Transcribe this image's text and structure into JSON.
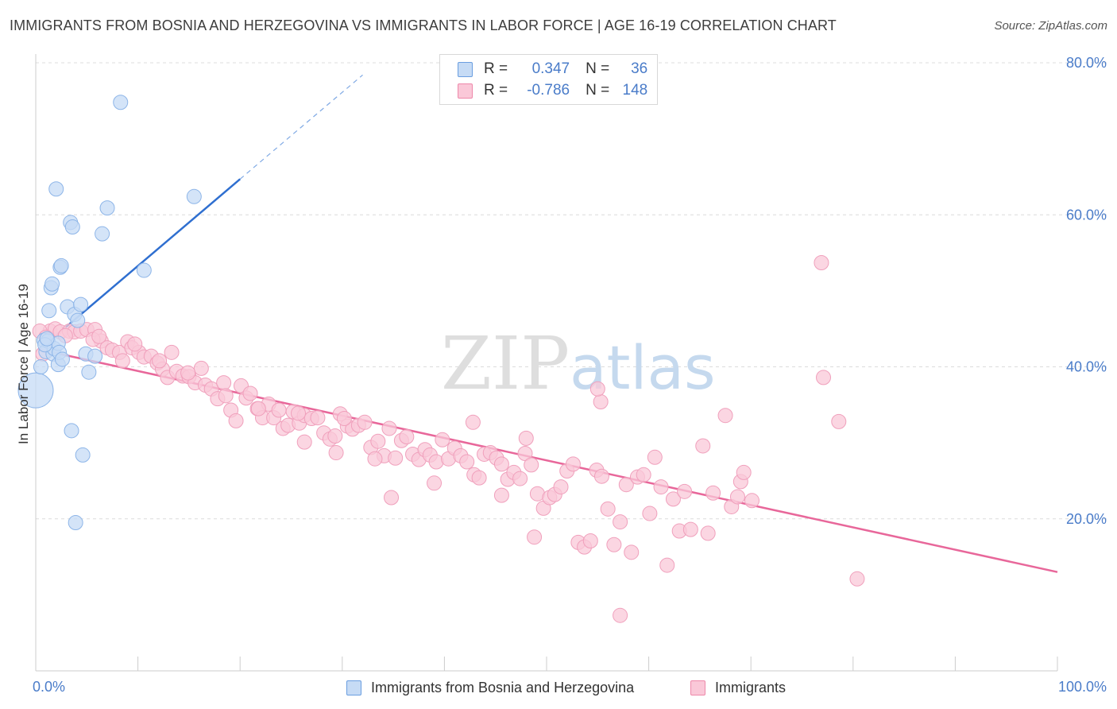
{
  "title": "IMMIGRANTS FROM BOSNIA AND HERZEGOVINA VS IMMIGRANTS IN LABOR FORCE | AGE 16-19 CORRELATION CHART",
  "source": "Source: ZipAtlas.com",
  "watermark": {
    "zip": "ZIP",
    "atlas": "atlas"
  },
  "legend": {
    "r_label": "R =",
    "n_label": "N =",
    "rows": [
      {
        "r": "0.347",
        "n": "36",
        "color": "#6a9ee0"
      },
      {
        "r": "-0.786",
        "n": "148",
        "color": "#ee88aa"
      }
    ]
  },
  "bottom_legend": [
    "Immigrants from Bosnia and Herzegovina",
    "Immigrants"
  ],
  "chart_data": {
    "type": "scatter",
    "title": "IMMIGRANTS FROM BOSNIA AND HERZEGOVINA VS IMMIGRANTS IN LABOR FORCE | AGE 16-19 CORRELATION CHART",
    "xlabel": "",
    "ylabel": "In Labor Force | Age 16-19",
    "xlim": [
      0,
      100
    ],
    "ylim": [
      0,
      80
    ],
    "x_tick_labels": [
      "0.0%",
      "100.0%"
    ],
    "y_tick_labels": [
      "20.0%",
      "40.0%",
      "60.0%",
      "80.0%"
    ],
    "y_ticks": [
      20,
      40,
      60,
      80
    ],
    "grid": true,
    "legend_placement": "top-center",
    "series": [
      {
        "name": "Immigrants from Bosnia and Herzegovina",
        "color": "#6a9ee0",
        "trend": {
          "x": [
            0.3,
            20
          ],
          "y": [
            42.2,
            64.7
          ],
          "dashed_to": [
            32,
            78.4
          ]
        },
        "points": [
          [
            0,
            36.9
          ],
          [
            0.5,
            40
          ],
          [
            0.8,
            43.5
          ],
          [
            1,
            42
          ],
          [
            1.2,
            43.4
          ],
          [
            1.3,
            47.4
          ],
          [
            1.5,
            50.4
          ],
          [
            1.6,
            50.9
          ],
          [
            1.7,
            41.7
          ],
          [
            1.8,
            42.4
          ],
          [
            2,
            63.4
          ],
          [
            2.2,
            40.3
          ],
          [
            2.4,
            53.1
          ],
          [
            2.5,
            53.3
          ],
          [
            2.2,
            43.1
          ],
          [
            2.3,
            41.9
          ],
          [
            2.6,
            41
          ],
          [
            3.1,
            47.9
          ],
          [
            3.4,
            59
          ],
          [
            3.6,
            58.4
          ],
          [
            3.5,
            31.6
          ],
          [
            3.8,
            46.9
          ],
          [
            3.9,
            19.5
          ],
          [
            4.1,
            46.1
          ],
          [
            4.4,
            48.2
          ],
          [
            4.6,
            28.4
          ],
          [
            4.9,
            41.7
          ],
          [
            5.2,
            39.3
          ],
          [
            5.8,
            41.4
          ],
          [
            6.5,
            57.5
          ],
          [
            7,
            60.9
          ],
          [
            8.3,
            74.8
          ],
          [
            10.6,
            52.7
          ],
          [
            15.5,
            62.4
          ],
          [
            0.9,
            42.9
          ],
          [
            1.1,
            43.7
          ]
        ]
      },
      {
        "name": "Immigrants",
        "color": "#ee88aa",
        "trend": {
          "x": [
            0.3,
            100
          ],
          "y": [
            42.3,
            13
          ]
        },
        "points": [
          [
            0.7,
            41.7
          ],
          [
            1.4,
            44.7
          ],
          [
            1.9,
            45
          ],
          [
            2.4,
            44.6
          ],
          [
            3.3,
            44.7
          ],
          [
            3.8,
            44.6
          ],
          [
            4.4,
            44.7
          ],
          [
            5,
            44.9
          ],
          [
            5.8,
            44.9
          ],
          [
            6.4,
            43.4
          ],
          [
            7,
            42.5
          ],
          [
            7.5,
            42.2
          ],
          [
            8.2,
            41.9
          ],
          [
            8.5,
            40.8
          ],
          [
            9,
            43.3
          ],
          [
            9.4,
            42.5
          ],
          [
            10.1,
            41.9
          ],
          [
            10.6,
            41.3
          ],
          [
            11.3,
            41.4
          ],
          [
            11.9,
            40.5
          ],
          [
            12.4,
            39.7
          ],
          [
            12.9,
            38.6
          ],
          [
            13.3,
            41.9
          ],
          [
            13.8,
            39.4
          ],
          [
            14.4,
            38.8
          ],
          [
            15,
            38.7
          ],
          [
            15.6,
            37.9
          ],
          [
            16.2,
            39.8
          ],
          [
            16.6,
            37.6
          ],
          [
            17.2,
            37.1
          ],
          [
            17.8,
            35.8
          ],
          [
            18.4,
            37.9
          ],
          [
            19.1,
            34.3
          ],
          [
            19.6,
            32.9
          ],
          [
            20.1,
            37.5
          ],
          [
            20.6,
            35.9
          ],
          [
            21,
            36.5
          ],
          [
            21.7,
            34.5
          ],
          [
            22.2,
            33.3
          ],
          [
            22.8,
            35.1
          ],
          [
            23.3,
            33.3
          ],
          [
            23.8,
            34.3
          ],
          [
            24.2,
            31.9
          ],
          [
            24.7,
            32.3
          ],
          [
            25.2,
            34.1
          ],
          [
            25.8,
            32.6
          ],
          [
            26.3,
            33.6
          ],
          [
            27,
            33.2
          ],
          [
            27.6,
            33.3
          ],
          [
            28.2,
            31.3
          ],
          [
            28.8,
            30.5
          ],
          [
            29.3,
            30.9
          ],
          [
            29.8,
            33.8
          ],
          [
            30.5,
            32.2
          ],
          [
            31,
            31.8
          ],
          [
            31.6,
            32.3
          ],
          [
            32.2,
            32.7
          ],
          [
            32.8,
            29.4
          ],
          [
            33.5,
            30.2
          ],
          [
            34.1,
            28.3
          ],
          [
            34.6,
            31.9
          ],
          [
            35.2,
            28
          ],
          [
            35.8,
            30.3
          ],
          [
            36.3,
            30.8
          ],
          [
            36.9,
            28.5
          ],
          [
            37.5,
            27.8
          ],
          [
            38.1,
            29.1
          ],
          [
            38.6,
            28.4
          ],
          [
            39.2,
            27.5
          ],
          [
            39.8,
            30.4
          ],
          [
            40.4,
            27.9
          ],
          [
            41,
            29.3
          ],
          [
            41.6,
            28.3
          ],
          [
            42.2,
            27.5
          ],
          [
            42.9,
            25.8
          ],
          [
            43.4,
            25.4
          ],
          [
            43.9,
            28.5
          ],
          [
            44.5,
            28.7
          ],
          [
            45.1,
            28
          ],
          [
            45.6,
            27.2
          ],
          [
            46.2,
            25.2
          ],
          [
            46.8,
            26.1
          ],
          [
            47.4,
            25.3
          ],
          [
            47.9,
            28.6
          ],
          [
            48.5,
            27.1
          ],
          [
            49.1,
            23.3
          ],
          [
            49.7,
            21.4
          ],
          [
            50.3,
            22.8
          ],
          [
            50.8,
            23.2
          ],
          [
            51.4,
            24.2
          ],
          [
            52,
            26.3
          ],
          [
            52.6,
            27.2
          ],
          [
            53.1,
            16.9
          ],
          [
            53.7,
            16.3
          ],
          [
            54.3,
            17.1
          ],
          [
            54.9,
            26.4
          ],
          [
            55.4,
            25.6
          ],
          [
            56,
            21.3
          ],
          [
            56.6,
            16.6
          ],
          [
            57.2,
            19.6
          ],
          [
            57.8,
            24.5
          ],
          [
            58.3,
            15.6
          ],
          [
            58.9,
            25.5
          ],
          [
            59.5,
            25.8
          ],
          [
            60.1,
            20.7
          ],
          [
            60.6,
            28.1
          ],
          [
            61.2,
            24.2
          ],
          [
            61.8,
            13.9
          ],
          [
            62.4,
            22.6
          ],
          [
            63,
            18.4
          ],
          [
            63.5,
            23.6
          ],
          [
            34.8,
            22.8
          ],
          [
            42.8,
            32.7
          ],
          [
            48.8,
            17.6
          ],
          [
            57.2,
            7.3
          ],
          [
            64.1,
            18.6
          ],
          [
            65.3,
            29.6
          ],
          [
            65.8,
            18.1
          ],
          [
            66.3,
            23.4
          ],
          [
            67.5,
            33.6
          ],
          [
            68.1,
            21.6
          ],
          [
            68.7,
            22.9
          ],
          [
            69,
            24.9
          ],
          [
            69.3,
            26.1
          ],
          [
            70.1,
            22.4
          ],
          [
            76.9,
            53.7
          ],
          [
            77.1,
            38.6
          ],
          [
            78.6,
            32.8
          ],
          [
            80.4,
            12.1
          ],
          [
            55.3,
            35.4
          ],
          [
            55,
            37.1
          ],
          [
            48,
            30.6
          ],
          [
            45.6,
            23.1
          ],
          [
            39,
            24.7
          ],
          [
            26.3,
            30.1
          ],
          [
            29.4,
            28.7
          ],
          [
            33.2,
            27.9
          ],
          [
            0.4,
            44.7
          ],
          [
            1,
            43.9
          ],
          [
            2.9,
            44.1
          ],
          [
            5.6,
            43.6
          ],
          [
            6.2,
            44
          ],
          [
            9.7,
            43
          ],
          [
            12.1,
            40.8
          ],
          [
            14.9,
            39.2
          ],
          [
            18.6,
            36.2
          ],
          [
            21.8,
            34.5
          ],
          [
            25.7,
            33.9
          ],
          [
            30.2,
            33.2
          ]
        ]
      }
    ]
  }
}
